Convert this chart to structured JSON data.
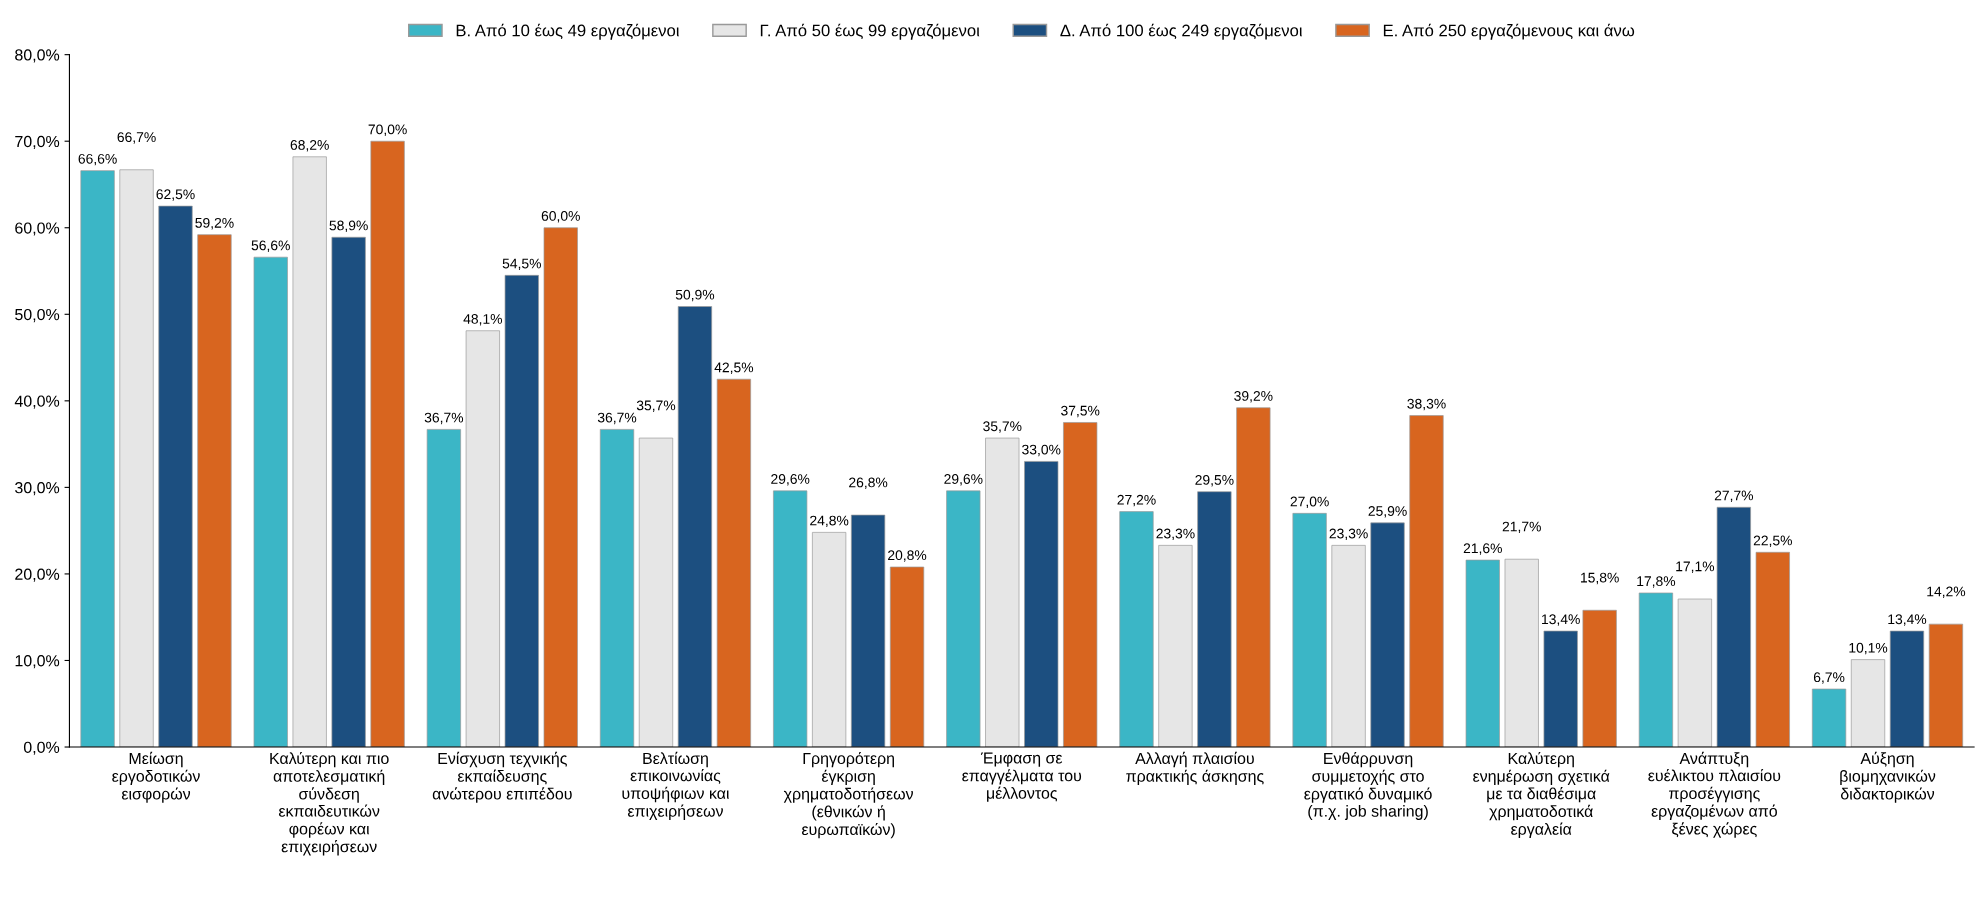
{
  "chart_data": {
    "type": "bar",
    "categories": [
      "Μείωση\nεργοδοτικών\nεισφορών",
      "Καλύτερη και πιο\nαποτελεσματική\nσύνδεση\nεκπαιδευτικών\nφορέων και\nεπιχειρήσεων",
      "Ενίσχυση τεχνικής\nεκπαίδευσης\nανώτερου επιπέδου",
      "Βελτίωση\nεπικοινωνίας\nυποψήφιων και\nεπιχειρήσεων",
      "Γρηγορότερη\nέγκριση\nχρηματοδοτήσεων\n(εθνικών ή\nευρωπαϊκών)",
      "Έμφαση σε\nεπαγγέλματα του\nμέλλοντος",
      "Αλλαγή πλαισίου\nπρακτικής άσκησης",
      "Ενθάρρυνση\nσυμμετοχής στο\nεργατικό δυναμικό\n(π.χ. job sharing)",
      "Καλύτερη\nενημέρωση σχετικά\nμε τα διαθέσιμα\nχρηματοδοτικά\nεργαλεία",
      "Ανάπτυξη\nευέλικτου πλαισίου\nπροσέγγισης\nεργαζομένων από\nξένες χώρες",
      "Αύξηση\nβιομηχανικών\nδιδακτορικών"
    ],
    "series": [
      {
        "name": "Β. Από 10 έως 49 εργαζόμενοι",
        "color": "#3bb6c6",
        "values": [
          66.6,
          56.6,
          36.7,
          36.7,
          29.6,
          29.6,
          27.2,
          27.0,
          21.6,
          17.8,
          6.7
        ],
        "value_labels": [
          "66,6%",
          "56,6%",
          "36,7%",
          "36,7%",
          "29,6%",
          "29,6%",
          "27,2%",
          "27,0%",
          "21,6%",
          "17,8%",
          "6,7%"
        ]
      },
      {
        "name": "Γ. Από 50 έως 99 εργαζόμενοι",
        "color": "#e6e6e6",
        "values": [
          66.7,
          68.2,
          48.1,
          35.7,
          24.8,
          35.7,
          23.3,
          23.3,
          21.7,
          17.1,
          10.1
        ],
        "value_labels": [
          "66,7%",
          "68,2%",
          "48,1%",
          "35,7%",
          "24,8%",
          "35,7%",
          "23,3%",
          "23,3%",
          "21,7%",
          "17,1%",
          "10,1%"
        ]
      },
      {
        "name": "Δ. Από 100 έως 249 εργαζόμενοι",
        "color": "#1c4f80",
        "values": [
          62.5,
          58.9,
          54.5,
          50.9,
          26.8,
          33.0,
          29.5,
          25.9,
          13.4,
          27.7,
          13.4
        ],
        "value_labels": [
          "62,5%",
          "58,9%",
          "54,5%",
          "50,9%",
          "26,8%",
          "33,0%",
          "29,5%",
          "25,9%",
          "13,4%",
          "27,7%",
          "13,4%"
        ]
      },
      {
        "name": "Ε. Από 250 εργαζόμενους και άνω",
        "color": "#d8651f",
        "values": [
          59.2,
          70.0,
          60.0,
          42.5,
          20.8,
          37.5,
          39.2,
          38.3,
          15.8,
          22.5,
          14.2
        ],
        "value_labels": [
          "59,2%",
          "70,0%",
          "60,0%",
          "42,5%",
          "20,8%",
          "37,5%",
          "39,2%",
          "38,3%",
          "15,8%",
          "22,5%",
          "14,2%"
        ]
      }
    ],
    "ylim": [
      0,
      80
    ],
    "yticks": [
      {
        "value": 0,
        "label": "0,0%"
      },
      {
        "value": 10,
        "label": "10,0%"
      },
      {
        "value": 20,
        "label": "20,0%"
      },
      {
        "value": 30,
        "label": "30,0%"
      },
      {
        "value": 40,
        "label": "40,0%"
      },
      {
        "value": 50,
        "label": "50,0%"
      },
      {
        "value": 60,
        "label": "60,0%"
      },
      {
        "value": 70,
        "label": "70,0%"
      },
      {
        "value": 80,
        "label": "80,0%"
      }
    ],
    "legend": "top",
    "grid": false
  }
}
